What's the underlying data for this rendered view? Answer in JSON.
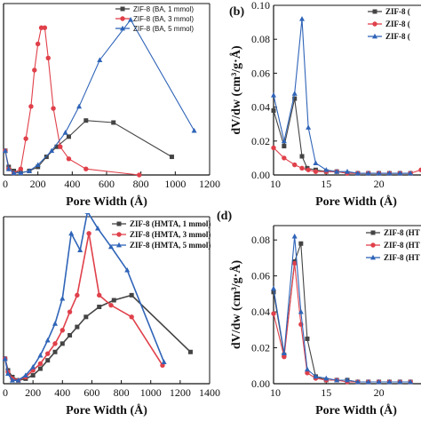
{
  "figure": {
    "panel_labels": [
      "(b)",
      "(d)"
    ]
  },
  "colors": {
    "s1": "#444444",
    "s2": "#e0404a",
    "s3": "#2f64b8"
  },
  "chart_data": [
    {
      "id": "a",
      "type": "line",
      "xlabel": "Pore Width (Å)",
      "ylabel": "",
      "xlim": [
        0,
        1200
      ],
      "ylim": [
        0,
        0.085
      ],
      "xticks": [
        "0",
        "200",
        "400",
        "600",
        "800",
        "1000",
        "1200"
      ],
      "yticks": [],
      "legend": "top-right",
      "series": [
        {
          "name": "ZIF-8 (BA, 1 mmol)",
          "color_key": "s1",
          "marker": "square",
          "x": [
            10,
            30,
            60,
            100,
            150,
            200,
            250,
            310,
            380,
            480,
            640,
            980
          ],
          "y": [
            0.012,
            0.004,
            0.002,
            0.001,
            0.002,
            0.004,
            0.009,
            0.014,
            0.019,
            0.027,
            0.026,
            0.009
          ]
        },
        {
          "name": "ZIF-8 (BA, 3 mmol)",
          "color_key": "s2",
          "marker": "circle",
          "x": [
            10,
            30,
            60,
            100,
            130,
            160,
            180,
            200,
            220,
            240,
            260,
            290,
            330,
            380,
            480,
            790
          ],
          "y": [
            0.012,
            0.003,
            0.001,
            0.003,
            0.018,
            0.034,
            0.052,
            0.065,
            0.073,
            0.073,
            0.058,
            0.033,
            0.014,
            0.008,
            0.003,
            0.0
          ]
        },
        {
          "name": "ZIF-8 (BA, 5 mmol)",
          "color_key": "s3",
          "marker": "triangle",
          "x": [
            10,
            30,
            60,
            100,
            150,
            200,
            280,
            360,
            440,
            560,
            740,
            1110
          ],
          "y": [
            0.012,
            0.003,
            0.001,
            0.001,
            0.002,
            0.005,
            0.012,
            0.021,
            0.034,
            0.057,
            0.077,
            0.022
          ]
        }
      ]
    },
    {
      "id": "b",
      "type": "line",
      "xlabel": "Pore Width (Å)",
      "ylabel": "dV/dw (cm³/g·Å)",
      "xlim": [
        10,
        24
      ],
      "ylim": [
        0,
        0.1
      ],
      "xticks": [
        "10",
        "15",
        "20"
      ],
      "yticks": [
        "0.00",
        "0.02",
        "0.04",
        "0.06",
        "0.08",
        "0.10"
      ],
      "legend": "top-right",
      "series": [
        {
          "name": "ZIF-8 (",
          "color_key": "s1",
          "marker": "square",
          "x": [
            10.0,
            11.0,
            12.0,
            12.7,
            13.2,
            14.0,
            15.0,
            16.0,
            17.0,
            18.0,
            19.0,
            20.0,
            21.0,
            22.0,
            23.0
          ],
          "y": [
            0.038,
            0.017,
            0.045,
            0.011,
            0.004,
            0.003,
            0.002,
            0.002,
            0.001,
            0.001,
            0.001,
            0.001,
            0.001,
            0.001,
            0.001
          ]
        },
        {
          "name": "ZIF-8 (",
          "color_key": "s2",
          "marker": "circle",
          "x": [
            10.0,
            11.0,
            12.0,
            12.7,
            13.3,
            14.0,
            15.0,
            16.0,
            17.0,
            18.0,
            19.0,
            20.0,
            21.0,
            22.0,
            23.0,
            24.0
          ],
          "y": [
            0.016,
            0.01,
            0.006,
            0.004,
            0.003,
            0.002,
            0.002,
            0.002,
            0.001,
            0.001,
            0.001,
            0.001,
            0.001,
            0.001,
            0.001,
            0.003
          ]
        },
        {
          "name": "ZIF-8 (",
          "color_key": "s3",
          "marker": "triangle",
          "x": [
            10.0,
            11.0,
            12.0,
            12.7,
            13.3,
            14.0,
            15.0,
            16.0,
            17.0,
            18.0,
            19.0,
            20.0,
            21.0,
            22.0,
            23.0
          ],
          "y": [
            0.047,
            0.02,
            0.048,
            0.092,
            0.028,
            0.007,
            0.003,
            0.002,
            0.002,
            0.001,
            0.001,
            0.001,
            0.001,
            0.001,
            0.001
          ]
        }
      ]
    },
    {
      "id": "c",
      "type": "line",
      "xlabel": "Pore Width (Å)",
      "ylabel": "",
      "xlim": [
        0,
        1400
      ],
      "ylim": [
        0,
        0.1
      ],
      "xticks": [
        "0",
        "200",
        "400",
        "600",
        "800",
        "1000",
        "1200",
        "1400"
      ],
      "yticks": [],
      "legend": "top-right",
      "series": [
        {
          "name": "ZIF-8 (HMTA, 1 mmol)",
          "color_key": "s1",
          "marker": "square",
          "x": [
            10,
            30,
            60,
            100,
            150,
            200,
            250,
            300,
            350,
            400,
            450,
            500,
            560,
            650,
            750,
            870,
            1270
          ],
          "y": [
            0.015,
            0.008,
            0.004,
            0.002,
            0.003,
            0.005,
            0.009,
            0.014,
            0.019,
            0.024,
            0.029,
            0.034,
            0.04,
            0.046,
            0.05,
            0.053,
            0.019
          ]
        },
        {
          "name": "ZIF-8 (HMTA, 3 mmol)",
          "color_key": "s2",
          "marker": "circle",
          "x": [
            10,
            30,
            60,
            100,
            150,
            200,
            250,
            300,
            350,
            400,
            450,
            500,
            580,
            650,
            730,
            870,
            1080
          ],
          "y": [
            0.015,
            0.007,
            0.003,
            0.002,
            0.004,
            0.008,
            0.012,
            0.018,
            0.024,
            0.032,
            0.043,
            0.053,
            0.09,
            0.053,
            0.047,
            0.04,
            0.011
          ]
        },
        {
          "name": "ZIF-8 (HMTA, 5 mmol)",
          "color_key": "s3",
          "marker": "triangle",
          "x": [
            10,
            30,
            60,
            100,
            150,
            200,
            250,
            300,
            350,
            400,
            460,
            520,
            570,
            640,
            730,
            840,
            1090
          ],
          "y": [
            0.015,
            0.006,
            0.002,
            0.002,
            0.005,
            0.01,
            0.017,
            0.026,
            0.036,
            0.051,
            0.09,
            0.08,
            0.103,
            0.093,
            0.082,
            0.068,
            0.013
          ]
        }
      ]
    },
    {
      "id": "d",
      "type": "line",
      "xlabel": "Pore Width (Å)",
      "ylabel": "dV/dw (cm³/g·Å)",
      "xlim": [
        10,
        24
      ],
      "ylim": [
        0,
        0.088
      ],
      "xticks": [
        "10",
        "15",
        "20"
      ],
      "yticks": [
        "0.00",
        "0.02",
        "0.04",
        "0.06",
        "0.08"
      ],
      "legend": "top-right",
      "series": [
        {
          "name": "ZIF-8 (HT",
          "color_key": "s1",
          "marker": "square",
          "x": [
            10.0,
            11.0,
            12.0,
            12.6,
            13.2,
            14.0,
            15.0,
            16.0,
            17.0,
            18.0,
            19.0,
            20.0,
            21.0,
            22.0,
            23.0
          ],
          "y": [
            0.051,
            0.016,
            0.068,
            0.078,
            0.025,
            0.004,
            0.002,
            0.002,
            0.002,
            0.001,
            0.001,
            0.001,
            0.001,
            0.001,
            0.001
          ]
        },
        {
          "name": "ZIF-8 (HT",
          "color_key": "s2",
          "marker": "circle",
          "x": [
            10.0,
            11.0,
            12.0,
            12.6,
            13.2,
            14.0,
            15.0,
            16.0,
            17.0,
            18.0,
            19.0,
            20.0,
            21.0,
            22.0,
            23.0
          ],
          "y": [
            0.039,
            0.015,
            0.067,
            0.033,
            0.006,
            0.003,
            0.002,
            0.002,
            0.001,
            0.001,
            0.001,
            0.001,
            0.001,
            0.001,
            0.001
          ]
        },
        {
          "name": "ZIF-8 (HT",
          "color_key": "s3",
          "marker": "triangle",
          "x": [
            10.0,
            11.0,
            12.0,
            12.6,
            13.2,
            14.0,
            15.0,
            16.0,
            17.0,
            18.0,
            19.0,
            20.0,
            21.0,
            22.0,
            23.0
          ],
          "y": [
            0.053,
            0.017,
            0.082,
            0.04,
            0.008,
            0.004,
            0.003,
            0.002,
            0.002,
            0.001,
            0.001,
            0.001,
            0.001,
            0.001,
            0.001
          ]
        }
      ]
    }
  ]
}
